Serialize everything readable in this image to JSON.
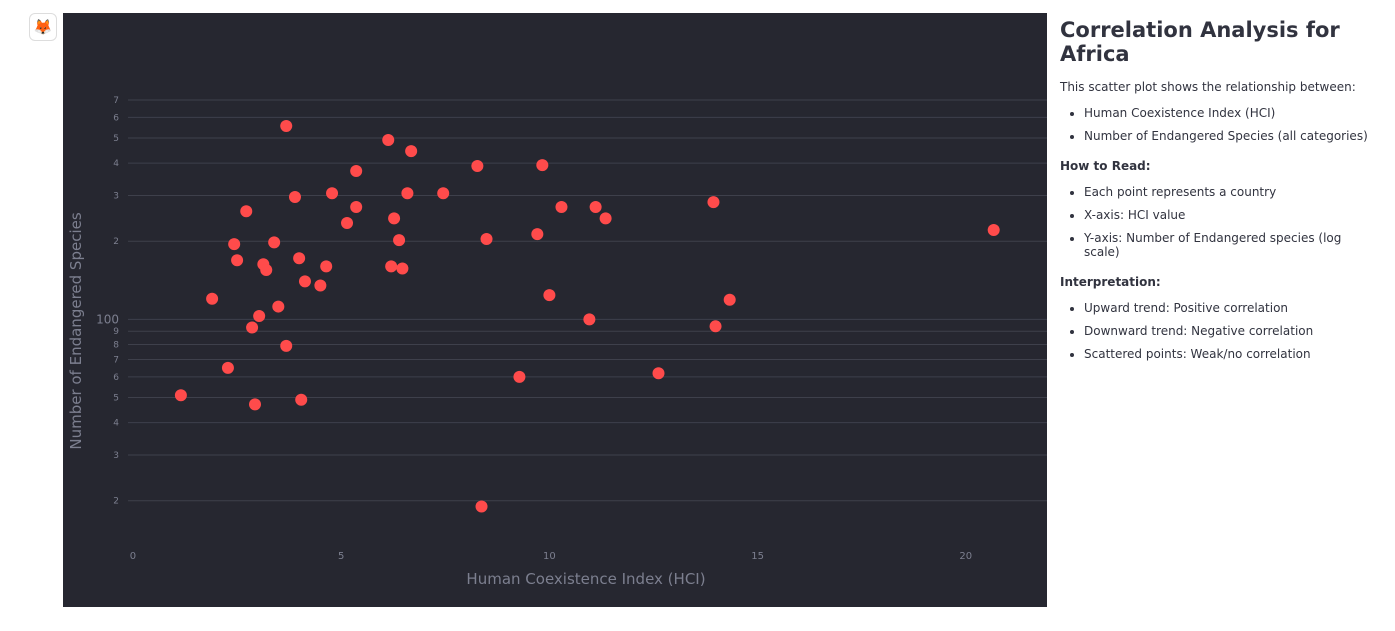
{
  "app": {
    "icon": "🦊"
  },
  "chart_data": {
    "type": "scatter",
    "x_label": "Human Coexistence Index (HCI)",
    "y_label": "Number of Endangered Species",
    "color": "#ff4b4b",
    "log_y": true,
    "grid": true,
    "x": [
      1.15,
      1.9,
      2.28,
      2.43,
      2.5,
      2.72,
      2.86,
      2.93,
      3.03,
      3.13,
      3.2,
      3.39,
      3.49,
      3.68,
      3.68,
      3.89,
      3.99,
      4.04,
      4.13,
      4.5,
      4.64,
      4.78,
      5.14,
      5.36,
      5.36,
      6.13,
      6.2,
      6.27,
      6.39,
      6.47,
      6.59,
      6.68,
      7.45,
      8.27,
      8.37,
      8.49,
      9.28,
      9.71,
      9.83,
      10.0,
      10.29,
      10.96,
      11.11,
      11.35,
      12.62,
      13.94,
      13.99,
      14.33,
      20.67
    ],
    "values": [
      51,
      120,
      65,
      195,
      169,
      261,
      93,
      47,
      103,
      163,
      155,
      198,
      112,
      556,
      79,
      296,
      172,
      49,
      140,
      135,
      160,
      306,
      235,
      373,
      271,
      491,
      160,
      245,
      202,
      157,
      306,
      445,
      306,
      390,
      19,
      204,
      60,
      213,
      393,
      124,
      271,
      100,
      271,
      245,
      62,
      283,
      94,
      119,
      221
    ],
    "xlim": [
      -0.12,
      21.95
    ],
    "xticks": [
      0,
      5,
      10,
      15,
      20
    ],
    "ylim": [
      13.5,
      800
    ],
    "yticks": [
      {
        "value": 20,
        "label": "2"
      },
      {
        "value": 30,
        "label": "3"
      },
      {
        "value": 40,
        "label": "4"
      },
      {
        "value": 50,
        "label": "5"
      },
      {
        "value": 60,
        "label": "6"
      },
      {
        "value": 70,
        "label": "7"
      },
      {
        "value": 80,
        "label": "8"
      },
      {
        "value": 90,
        "label": "9"
      },
      100,
      {
        "value": 200,
        "label": "2"
      },
      {
        "value": 300,
        "label": "3"
      },
      {
        "value": 400,
        "label": "4"
      },
      {
        "value": 500,
        "label": "5"
      },
      {
        "value": 600,
        "label": "6"
      },
      {
        "value": 700,
        "label": "7"
      }
    ]
  },
  "sidebar": {
    "title": "Correlation Analysis for Africa",
    "intro": "This scatter plot shows the relationship between:",
    "intro_items": [
      "Human Coexistence Index (HCI)",
      "Number of Endangered Species (all categories)"
    ],
    "sections": [
      {
        "heading": "How to Read:",
        "items": [
          "Each point represents a country",
          "X-axis: HCI value",
          "Y-axis: Number of Endangered species (log scale)"
        ]
      },
      {
        "heading": "Interpretation:",
        "items": [
          "Upward trend: Positive correlation",
          "Downward trend: Negative correlation",
          "Scattered points: Weak/no correlation"
        ]
      }
    ]
  }
}
